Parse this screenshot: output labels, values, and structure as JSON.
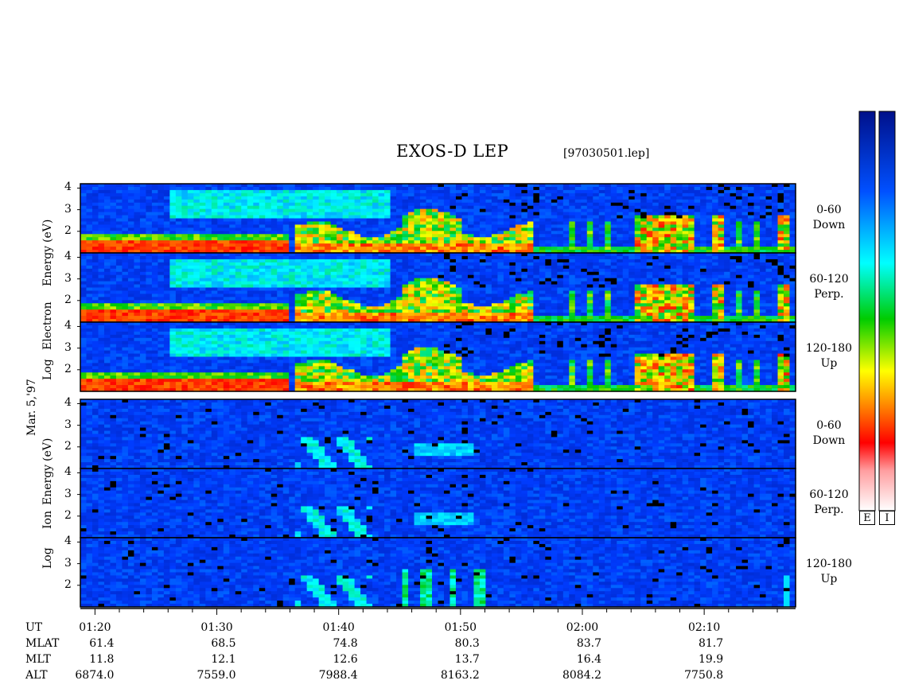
{
  "title": "EXOS-D LEP",
  "filename": "[97030501.lep]",
  "date_label": "Mar. 5,'97",
  "chart_data": {
    "type": "heatmap",
    "description_groups": [
      {
        "name": "Electron",
        "ylabel_parts": [
          "Log",
          "Electron",
          "Energy",
          "(eV)"
        ]
      },
      {
        "name": "Ion",
        "ylabel_parts": [
          "Log",
          "Ion",
          "Energy",
          "(eV)"
        ]
      }
    ],
    "ylim": [
      1,
      4.2
    ],
    "y_ticks": [
      2,
      3,
      4
    ],
    "x_ticks": [
      "01:20",
      "01:30",
      "01:40",
      "01:50",
      "02:00",
      "02:10"
    ],
    "x_range_minutes": [
      78.8,
      137.5
    ],
    "panels": [
      {
        "species": "Electron",
        "pitch": "0-60",
        "dir": "Down"
      },
      {
        "species": "Electron",
        "pitch": "60-120",
        "dir": "Perp."
      },
      {
        "species": "Electron",
        "pitch": "120-180",
        "dir": "Up"
      },
      {
        "species": "Ion",
        "pitch": "0-60",
        "dir": "Down"
      },
      {
        "species": "Ion",
        "pitch": "60-120",
        "dir": "Perp."
      },
      {
        "species": "Ion",
        "pitch": "120-180",
        "dir": "Up"
      }
    ],
    "colorbars": [
      {
        "tag": "E"
      },
      {
        "tag": "I"
      }
    ],
    "ephemeris": {
      "rows": [
        {
          "label": "UT",
          "values": [
            "01:20",
            "01:30",
            "01:40",
            "01:50",
            "02:00",
            "02:10"
          ]
        },
        {
          "label": "MLAT",
          "values": [
            "61.4",
            "68.5",
            "74.8",
            "80.3",
            "83.7",
            "81.7"
          ]
        },
        {
          "label": "MLT",
          "values": [
            "11.8",
            "12.1",
            "12.6",
            "13.7",
            "16.4",
            "19.9"
          ]
        },
        {
          "label": "ALT",
          "values": [
            "6874.0",
            "7559.0",
            "7988.4",
            "8163.2",
            "8084.2",
            "7750.8"
          ]
        }
      ]
    }
  }
}
